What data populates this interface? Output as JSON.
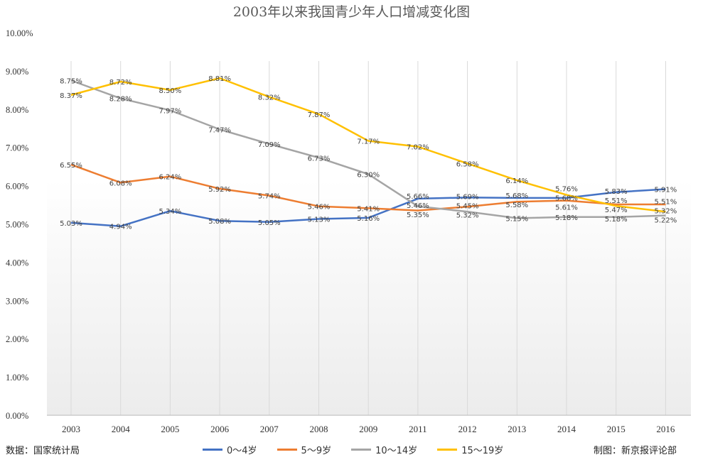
{
  "chart_data": {
    "type": "line",
    "title": "2003年以来我国青少年人口增减变化图",
    "categories": [
      "2003",
      "2004",
      "2005",
      "2006",
      "2007",
      "2008",
      "2009",
      "2011",
      "2012",
      "2013",
      "2014",
      "2015",
      "2016"
    ],
    "ylim": [
      0,
      10
    ],
    "yticks": [
      "0.00%",
      "1.00%",
      "2.00%",
      "3.00%",
      "4.00%",
      "5.00%",
      "6.00%",
      "7.00%",
      "8.00%",
      "9.00%",
      "10.00%"
    ],
    "grid": "vertical",
    "legend": "bottom",
    "series": [
      {
        "name": "0～4岁",
        "color": "#4472c4",
        "values": [
          5.03,
          4.94,
          5.34,
          5.08,
          5.05,
          5.13,
          5.16,
          5.66,
          5.69,
          5.68,
          5.68,
          5.83,
          5.91
        ]
      },
      {
        "name": "5～9岁",
        "color": "#ed7d31",
        "values": [
          6.55,
          6.08,
          6.24,
          5.92,
          5.74,
          5.46,
          5.41,
          5.35,
          5.45,
          5.58,
          5.61,
          5.51,
          5.51
        ]
      },
      {
        "name": "10～14岁",
        "color": "#a5a5a5",
        "values": [
          8.75,
          8.28,
          7.97,
          7.47,
          7.09,
          6.73,
          6.3,
          5.46,
          5.32,
          5.15,
          5.18,
          5.18,
          5.22
        ]
      },
      {
        "name": "15～19岁",
        "color": "#ffc000",
        "values": [
          8.37,
          8.72,
          8.5,
          8.81,
          8.32,
          7.87,
          7.17,
          7.02,
          6.58,
          6.14,
          5.76,
          5.47,
          5.32
        ]
      }
    ]
  },
  "footer": {
    "source": "数据：国家统计局",
    "credit": "制图：新京报评论部"
  }
}
